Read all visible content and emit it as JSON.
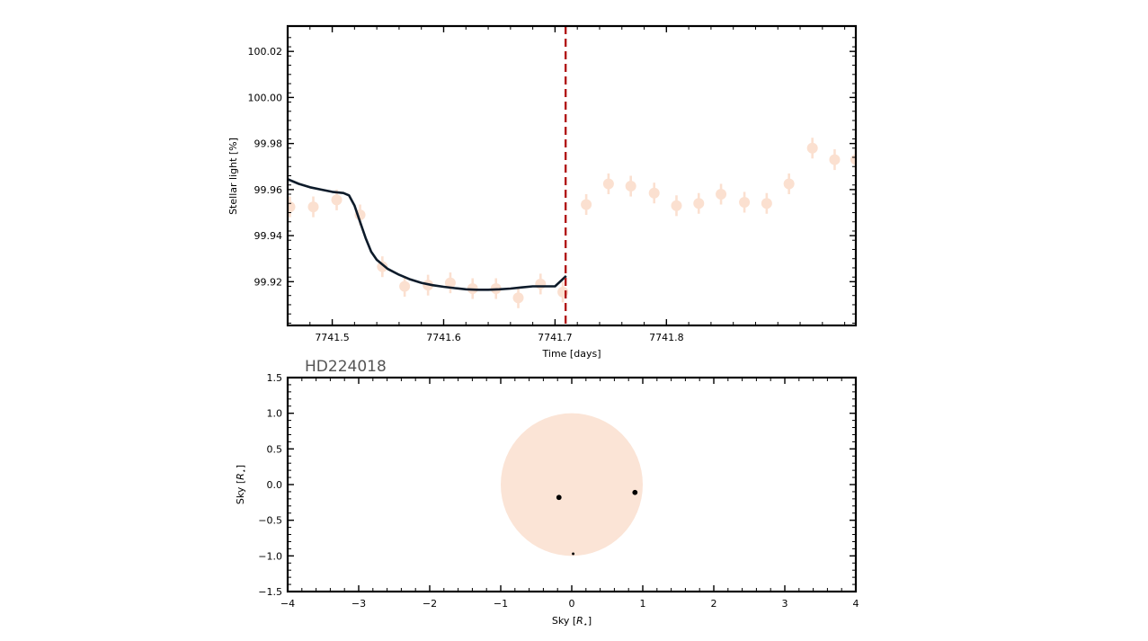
{
  "chart_data": [
    {
      "type": "line",
      "title": "",
      "xlabel": "Time [days]",
      "ylabel": "Stellar light [%]",
      "xlim": [
        7741.46,
        7741.97
      ],
      "ylim": [
        99.901,
        100.031
      ],
      "x_ticks": [
        7741.5,
        7741.6,
        7741.7,
        7741.8
      ],
      "x_tick_labels": [
        "7741.5",
        "7741.6",
        "7741.7",
        "7741.8"
      ],
      "y_ticks": [
        99.92,
        99.94,
        99.96,
        99.98,
        100.0,
        100.02
      ],
      "y_tick_labels": [
        "99.92",
        "99.94",
        "99.96",
        "99.98",
        "100.00",
        "100.02"
      ],
      "grid": false,
      "series": [
        {
          "type": "scatter",
          "color": "#fbe0d0",
          "x": [
            7741.462,
            7741.483,
            7741.504,
            7741.525,
            7741.545,
            7741.565,
            7741.586,
            7741.606,
            7741.626,
            7741.647,
            7741.667,
            7741.687,
            7741.707,
            7741.728,
            7741.748,
            7741.768,
            7741.789,
            7741.809,
            7741.829,
            7741.849,
            7741.87,
            7741.89,
            7741.91,
            7741.931,
            7741.951,
            7741.97
          ],
          "y": [
            99.9525,
            99.9525,
            99.9555,
            99.949,
            99.9265,
            99.918,
            99.9185,
            99.9195,
            99.917,
            99.917,
            99.913,
            99.919,
            99.9155,
            99.9535,
            99.9625,
            99.9615,
            99.9585,
            99.953,
            99.954,
            99.958,
            99.9545,
            99.954,
            99.9625,
            99.978,
            99.973,
            99.973
          ],
          "yerr": 0.0045
        },
        {
          "type": "line",
          "color": "#0d1b2a",
          "x": [
            7741.46,
            7741.47,
            7741.48,
            7741.49,
            7741.5,
            7741.51,
            7741.515,
            7741.52,
            7741.525,
            7741.53,
            7741.535,
            7741.54,
            7741.55,
            7741.56,
            7741.57,
            7741.58,
            7741.59,
            7741.6,
            7741.61,
            7741.62,
            7741.63,
            7741.64,
            7741.65,
            7741.66,
            7741.67,
            7741.68,
            7741.69,
            7741.7,
            7741.71
          ],
          "y": [
            99.9645,
            99.9625,
            99.961,
            99.96,
            99.959,
            99.9585,
            99.9575,
            99.953,
            99.946,
            99.939,
            99.933,
            99.9295,
            99.9255,
            99.923,
            99.921,
            99.9195,
            99.9185,
            99.9178,
            99.9172,
            99.9167,
            99.9165,
            99.9165,
            99.9167,
            99.917,
            99.9175,
            99.918,
            99.918,
            99.918,
            99.9225
          ]
        }
      ],
      "annotations": [
        {
          "type": "vline",
          "x": 7741.7095,
          "color": "#b21818",
          "style": "dashed"
        }
      ]
    },
    {
      "type": "scatter",
      "title": "HD224018",
      "xlabel": "Sky [R$_\\star$]",
      "ylabel": "Sky [R$_\\star$]",
      "xlim": [
        -4,
        4
      ],
      "ylim": [
        -1.5,
        1.5
      ],
      "x_ticks": [
        -4,
        -3,
        -2,
        -1,
        0,
        1,
        2,
        3,
        4
      ],
      "x_tick_labels": [
        "−4",
        "−3",
        "−2",
        "−1",
        "0",
        "1",
        "2",
        "3",
        "4"
      ],
      "y_ticks": [
        -1.5,
        -1.0,
        -0.5,
        0.0,
        0.5,
        1.0,
        1.5
      ],
      "y_tick_labels": [
        "−1.5",
        "−1.0",
        "−0.5",
        "0.0",
        "0.5",
        "1.0",
        "1.5"
      ],
      "grid": false,
      "star": {
        "cx": 0,
        "cy": 0,
        "r": 1.0,
        "color": "#fbe4d6"
      },
      "planets": [
        {
          "x": -0.18,
          "y": -0.18,
          "size": 2.4
        },
        {
          "x": 0.89,
          "y": -0.11,
          "size": 2.4
        },
        {
          "x": 0.02,
          "y": -0.97,
          "size": 1.2
        }
      ]
    }
  ]
}
